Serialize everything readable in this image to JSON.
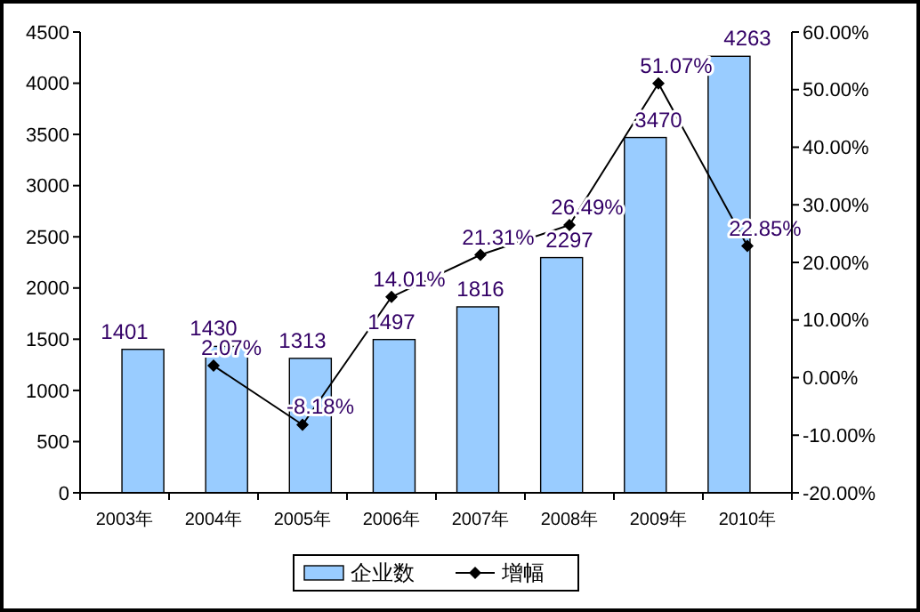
{
  "chart_data": {
    "type": "bar",
    "categories": [
      "2003年",
      "2004年",
      "2005年",
      "2006年",
      "2007年",
      "2008年",
      "2009年",
      "2010年"
    ],
    "series": [
      {
        "name": "企业数",
        "color": "#99ccff",
        "values": [
          1401,
          1430,
          1313,
          1497,
          1816,
          2297,
          3470,
          4263
        ],
        "value_labels": [
          "1401",
          "1430",
          "1313",
          "1497",
          "1816",
          "2297",
          "3470",
          "4263"
        ]
      },
      {
        "name": "增幅",
        "type": "line",
        "axis": "y2",
        "color": "#000000",
        "marker": "diamond",
        "values": [
          null,
          2.07,
          -8.18,
          14.01,
          21.31,
          26.49,
          51.07,
          22.85
        ],
        "value_labels": [
          null,
          "2.07%",
          "-8.18%",
          "14.01%",
          "21.31%",
          "26.49%",
          "51.07%",
          "22.85%"
        ]
      }
    ],
    "ylim": [
      0,
      4500
    ],
    "yticks": [
      0,
      500,
      1000,
      1500,
      2000,
      2500,
      3000,
      3500,
      4000,
      4500
    ],
    "y2lim": [
      -20,
      60
    ],
    "y2ticks": [
      {
        "value": -20,
        "label": "-20.00%"
      },
      {
        "value": -10,
        "label": "-10.00%"
      },
      {
        "value": 0,
        "label": "0.00%"
      },
      {
        "value": 10,
        "label": "10.00%"
      },
      {
        "value": 20,
        "label": "20.00%"
      },
      {
        "value": 30,
        "label": "30.00%"
      },
      {
        "value": 40,
        "label": "40.00%"
      },
      {
        "value": 50,
        "label": "50.00%"
      },
      {
        "value": 60,
        "label": "60.00%"
      }
    ],
    "grid": false,
    "legend": "bottom"
  }
}
